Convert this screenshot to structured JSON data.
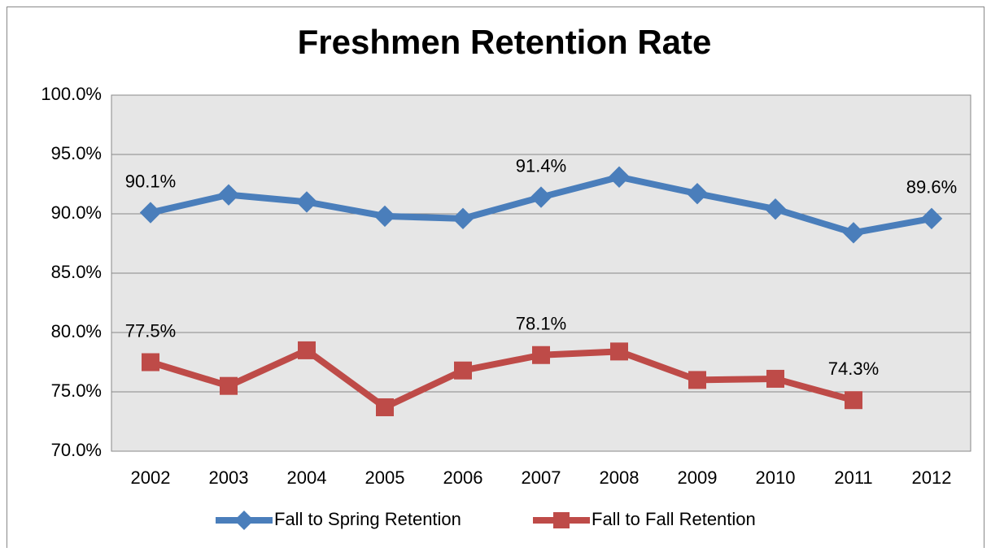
{
  "chart_data": {
    "type": "line",
    "title": "Freshmen Retention Rate",
    "categories": [
      "2002",
      "2003",
      "2004",
      "2005",
      "2006",
      "2007",
      "2008",
      "2009",
      "2010",
      "2011",
      "2012"
    ],
    "series": [
      {
        "name": "Fall to Spring Retention",
        "color": "#4a7ebb",
        "marker": "diamond",
        "values": [
          90.1,
          91.6,
          91.0,
          89.8,
          89.6,
          91.4,
          93.1,
          91.7,
          90.4,
          88.4,
          89.6
        ],
        "value_labels": [
          "90.1%",
          null,
          null,
          null,
          null,
          "91.4%",
          null,
          null,
          null,
          null,
          "89.6%"
        ]
      },
      {
        "name": "Fall to Fall Retention",
        "color": "#be4b48",
        "marker": "square",
        "values": [
          77.5,
          75.5,
          78.5,
          73.7,
          76.8,
          78.1,
          78.4,
          76.0,
          76.1,
          74.3,
          null
        ],
        "value_labels": [
          "77.5%",
          null,
          null,
          null,
          null,
          "78.1%",
          null,
          null,
          null,
          "74.3%",
          null
        ]
      }
    ],
    "ylim": [
      70,
      100
    ],
    "yticks": [
      {
        "value": 70,
        "label": "70.0%"
      },
      {
        "value": 75,
        "label": "75.0%"
      },
      {
        "value": 80,
        "label": "80.0%"
      },
      {
        "value": 85,
        "label": "85.0%"
      },
      {
        "value": 90,
        "label": "90.0%"
      },
      {
        "value": 95,
        "label": "95.0%"
      },
      {
        "value": 100,
        "label": "100.0%"
      }
    ],
    "grid": true,
    "legend": "bottom"
  }
}
